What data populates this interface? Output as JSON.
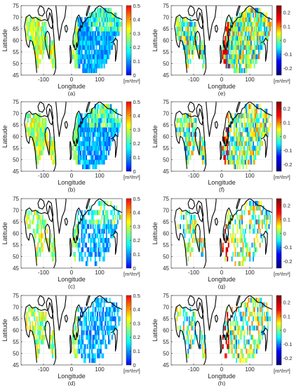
{
  "figure": {
    "panels": [
      {
        "id": "a",
        "label": "(a)",
        "colorbar": "sm",
        "pattern": "sm_a"
      },
      {
        "id": "b",
        "label": "(b)",
        "colorbar": "sm",
        "pattern": "sm_b"
      },
      {
        "id": "c",
        "label": "(c)",
        "colorbar": "sm",
        "pattern": "sm_c"
      },
      {
        "id": "d",
        "label": "(d)",
        "colorbar": "sm",
        "pattern": "sm_d"
      },
      {
        "id": "e",
        "label": "(e)",
        "colorbar": "diff",
        "pattern": "df_e"
      },
      {
        "id": "f",
        "label": "(f)",
        "colorbar": "diff",
        "pattern": "df_f"
      },
      {
        "id": "g",
        "label": "(g)",
        "colorbar": "diff",
        "pattern": "df_g"
      },
      {
        "id": "h",
        "label": "(h)",
        "colorbar": "diff",
        "pattern": "df_h"
      }
    ],
    "x_axis": {
      "label": "Longitude",
      "ticks": [
        "-100",
        "0",
        "100"
      ],
      "range": [
        -180,
        180
      ]
    },
    "y_axis": {
      "label": "Latitude",
      "ticks": [
        "75",
        "70",
        "65",
        "60",
        "55",
        "50",
        "45"
      ],
      "range": [
        45,
        75
      ]
    },
    "colorbars": {
      "sm": {
        "ticks": [
          "0.5",
          "0.4",
          "0.3",
          "0.2",
          "0.1",
          "0"
        ],
        "range": [
          0,
          0.5
        ],
        "colors": [
          "#0000ff",
          "#00ffff",
          "#ffff00",
          "#ff0000"
        ]
      },
      "diff": {
        "ticks": [
          "0.2",
          "0.1",
          "0",
          "-0.1",
          "-0.2"
        ],
        "range": [
          -0.25,
          0.25
        ],
        "colors": [
          "#00007f",
          "#0000ff",
          "#00ffff",
          "#ffff00",
          "#ff0000",
          "#7f0000"
        ]
      }
    },
    "unit_label": "[m³/m³]"
  }
}
